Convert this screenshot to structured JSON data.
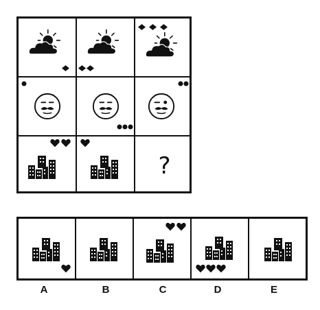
{
  "matrix": {
    "row1": [
      {
        "icon": "sun-cloud-icon",
        "diamonds": 1
      },
      {
        "icon": "sun-cloud-icon",
        "diamonds": 2
      },
      {
        "icon": "sun-cloud-icon",
        "diamonds": 3
      }
    ],
    "row2": [
      {
        "icon": "mustache-face-icon",
        "dots": 1
      },
      {
        "icon": "mustache-face-icon",
        "dots": 3
      },
      {
        "icon": "winking-mustache-face-icon",
        "dots": 2
      }
    ],
    "row3": [
      {
        "icon": "city-buildings-icon",
        "hearts": 2
      },
      {
        "icon": "city-buildings-icon",
        "hearts": 1
      },
      {
        "missing": true
      }
    ],
    "question_mark": "?"
  },
  "options": [
    {
      "letter": "A",
      "icon": "city-buildings-icon",
      "hearts": 1
    },
    {
      "letter": "B",
      "icon": "city-buildings-icon",
      "hearts": 0
    },
    {
      "letter": "C",
      "icon": "city-buildings-icon",
      "hearts": 2
    },
    {
      "letter": "D",
      "icon": "city-buildings-icon",
      "hearts": 3
    },
    {
      "letter": "E",
      "icon": "city-buildings-icon",
      "hearts": 0
    }
  ],
  "colors": {
    "ink": "#111111",
    "background": "#ffffff"
  }
}
